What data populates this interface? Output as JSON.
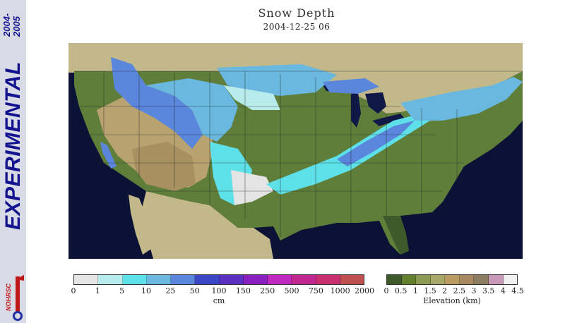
{
  "sidebar": {
    "years_line1": "2004-",
    "years_line2": "2005",
    "label": "EXPERIMENTAL",
    "logo_text": "NOHRSC"
  },
  "header": {
    "title": "Snow Depth",
    "timestamp": "2004-12-25 06"
  },
  "map": {
    "description_name": "snow-depth-map-conus",
    "colors": {
      "ocean": "#0b1236",
      "land": "#c2b88a",
      "lakes": "#101848"
    }
  },
  "snow_legend": {
    "unit": "cm",
    "ticks": [
      "0",
      "1",
      "5",
      "10",
      "25",
      "50",
      "100",
      "150",
      "250",
      "500",
      "750",
      "1000",
      "2000"
    ],
    "colors": [
      "#e4e4e4",
      "#b8ecec",
      "#5ee0e8",
      "#6ab8e0",
      "#5a86dc",
      "#3a46c4",
      "#5a30c0",
      "#8a20c0",
      "#c028c0",
      "#c02890",
      "#c83070",
      "#c05050"
    ]
  },
  "elevation_legend": {
    "unit": "Elevation (km)",
    "ticks": [
      "0",
      "0.5",
      "1",
      "1.5",
      "2",
      "2.5",
      "3",
      "3.5",
      "4",
      "4.5"
    ],
    "colors": [
      "#3e5a2a",
      "#62802e",
      "#8a9a52",
      "#a8a86a",
      "#b89c62",
      "#a88860",
      "#8c7c60",
      "#c898b8",
      "#f0f0f0"
    ]
  }
}
